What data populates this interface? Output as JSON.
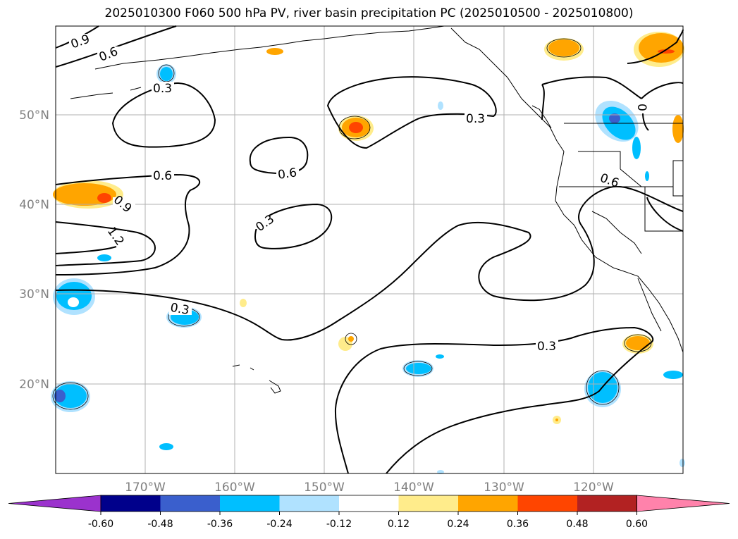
{
  "title": "2025010300 F060 500 hPa PV, river basin precipitation PC (2025010500 - 2025010800)",
  "lon_labels": [
    "170°W",
    "160°W",
    "150°W",
    "140°W",
    "130°W",
    "120°W"
  ],
  "lat_labels": [
    "50°N",
    "40°N",
    "30°N",
    "20°N"
  ],
  "contour_labels": [
    "0.9",
    "0.6",
    "0.3",
    "0.6",
    "0.6",
    "0.9",
    "1.2",
    "0.3",
    "0.3",
    "0.3",
    "0.6",
    "0.3",
    "0"
  ],
  "colorbar": {
    "ticks": [
      "-0.60",
      "-0.48",
      "-0.36",
      "-0.24",
      "-0.12",
      "0.12",
      "0.24",
      "0.36",
      "0.48",
      "0.60"
    ],
    "colors": [
      "#9b32cd",
      "#00008b",
      "#3a5fcd",
      "#00bfff",
      "#b0e2ff",
      "#ffffff",
      "#ffec8b",
      "#ffa500",
      "#ff4500",
      "#b22222",
      "#ff82ab"
    ]
  }
}
